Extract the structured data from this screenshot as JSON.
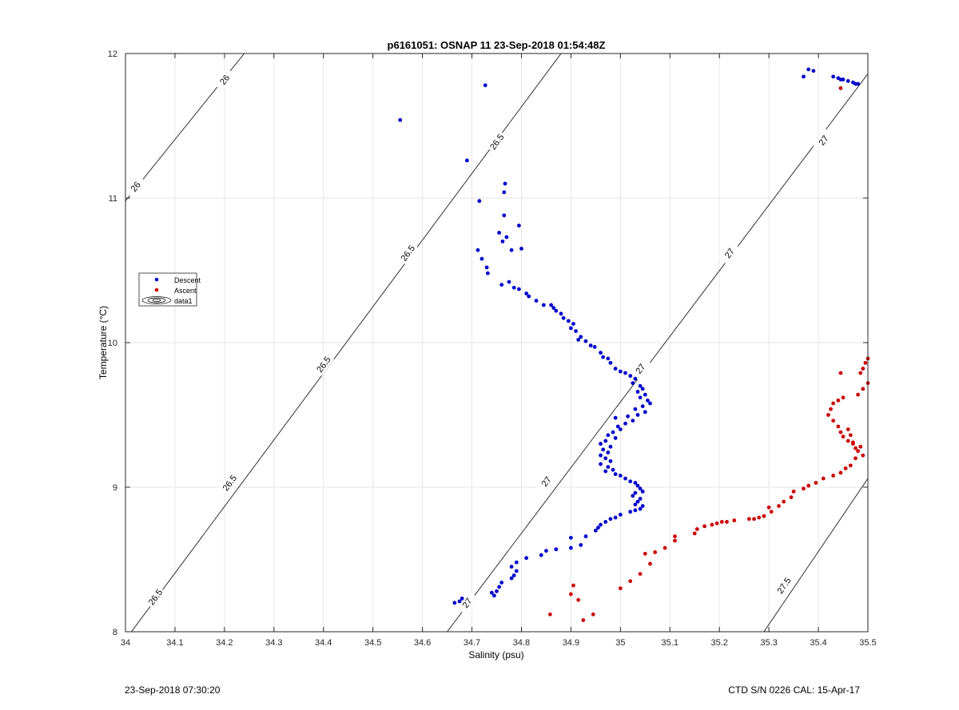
{
  "chart_data": {
    "type": "scatter",
    "title": "p6161051: OSNAP 11 23-Sep-2018 01:54:48Z",
    "xlabel": "Salinity (psu)",
    "ylabel": "Temperature (°C)",
    "xlim": [
      34,
      35.5
    ],
    "ylim": [
      8,
      12
    ],
    "xticks": [
      "34",
      "34.1",
      "34.2",
      "34.3",
      "34.4",
      "34.5",
      "34.6",
      "34.7",
      "34.8",
      "34.9",
      "35",
      "35.1",
      "35.2",
      "35.3",
      "35.4",
      "35.5"
    ],
    "yticks": [
      "8",
      "9",
      "10",
      "11",
      "12"
    ],
    "grid": true,
    "legend_location": "left",
    "series": [
      {
        "name": "Descent",
        "color": "#0000cc",
        "points": [
          [
            34.555,
            11.54
          ],
          [
            34.727,
            11.78
          ],
          [
            34.69,
            11.26
          ],
          [
            34.767,
            11.1
          ],
          [
            34.765,
            11.04
          ],
          [
            34.715,
            10.98
          ],
          [
            34.765,
            10.88
          ],
          [
            34.755,
            10.76
          ],
          [
            34.77,
            10.73
          ],
          [
            34.795,
            10.81
          ],
          [
            34.762,
            10.7
          ],
          [
            34.712,
            10.64
          ],
          [
            34.78,
            10.64
          ],
          [
            34.8,
            10.65
          ],
          [
            34.72,
            10.58
          ],
          [
            34.73,
            10.52
          ],
          [
            34.732,
            10.48
          ],
          [
            34.76,
            10.4
          ],
          [
            34.775,
            10.42
          ],
          [
            34.785,
            10.38
          ],
          [
            34.795,
            10.37
          ],
          [
            34.81,
            10.34
          ],
          [
            34.815,
            10.32
          ],
          [
            34.83,
            10.29
          ],
          [
            34.845,
            10.26
          ],
          [
            34.86,
            10.26
          ],
          [
            34.865,
            10.24
          ],
          [
            34.87,
            10.22
          ],
          [
            34.88,
            10.2
          ],
          [
            34.885,
            10.17
          ],
          [
            34.895,
            10.15
          ],
          [
            34.905,
            10.13
          ],
          [
            34.9,
            10.1
          ],
          [
            34.91,
            10.08
          ],
          [
            34.92,
            10.04
          ],
          [
            34.915,
            10.02
          ],
          [
            34.93,
            10.01
          ],
          [
            34.94,
            9.98
          ],
          [
            34.948,
            9.97
          ],
          [
            34.96,
            9.93
          ],
          [
            34.965,
            9.9
          ],
          [
            34.975,
            9.89
          ],
          [
            34.98,
            9.86
          ],
          [
            34.99,
            9.82
          ],
          [
            35.0,
            9.8
          ],
          [
            35.01,
            9.79
          ],
          [
            35.02,
            9.77
          ],
          [
            35.03,
            9.75
          ],
          [
            35.025,
            9.72
          ],
          [
            35.04,
            9.7
          ],
          [
            35.045,
            9.68
          ],
          [
            35.035,
            9.66
          ],
          [
            35.05,
            9.64
          ],
          [
            35.04,
            9.62
          ],
          [
            35.055,
            9.6
          ],
          [
            35.06,
            9.58
          ],
          [
            35.045,
            9.56
          ],
          [
            35.03,
            9.54
          ],
          [
            35.05,
            9.52
          ],
          [
            35.035,
            9.5
          ],
          [
            35.015,
            9.49
          ],
          [
            34.99,
            9.48
          ],
          [
            35.025,
            9.46
          ],
          [
            35.01,
            9.44
          ],
          [
            34.995,
            9.42
          ],
          [
            35.0,
            9.4
          ],
          [
            34.985,
            9.38
          ],
          [
            34.975,
            9.36
          ],
          [
            34.99,
            9.34
          ],
          [
            34.97,
            9.32
          ],
          [
            34.96,
            9.3
          ],
          [
            34.98,
            9.28
          ],
          [
            34.965,
            9.26
          ],
          [
            34.975,
            9.24
          ],
          [
            34.96,
            9.22
          ],
          [
            34.97,
            9.2
          ],
          [
            34.98,
            9.18
          ],
          [
            34.96,
            9.16
          ],
          [
            34.975,
            9.14
          ],
          [
            34.985,
            9.12
          ],
          [
            34.97,
            9.11
          ],
          [
            34.99,
            9.09
          ],
          [
            35.0,
            9.08
          ],
          [
            35.01,
            9.06
          ],
          [
            35.02,
            9.04
          ],
          [
            35.03,
            9.03
          ],
          [
            35.035,
            9.01
          ],
          [
            35.04,
            8.99
          ],
          [
            35.045,
            8.97
          ],
          [
            35.03,
            8.96
          ],
          [
            35.025,
            8.94
          ],
          [
            35.04,
            8.92
          ],
          [
            35.035,
            8.9
          ],
          [
            35.03,
            8.88
          ],
          [
            35.045,
            8.87
          ],
          [
            35.04,
            8.85
          ],
          [
            35.03,
            8.84
          ],
          [
            35.02,
            8.83
          ],
          [
            35.0,
            8.81
          ],
          [
            34.99,
            8.79
          ],
          [
            34.98,
            8.78
          ],
          [
            34.97,
            8.76
          ],
          [
            34.96,
            8.74
          ],
          [
            34.955,
            8.72
          ],
          [
            34.95,
            8.7
          ],
          [
            34.93,
            8.66
          ],
          [
            34.9,
            8.65
          ],
          [
            34.92,
            8.6
          ],
          [
            34.9,
            8.58
          ],
          [
            34.87,
            8.57
          ],
          [
            34.85,
            8.56
          ],
          [
            34.84,
            8.53
          ],
          [
            34.81,
            8.51
          ],
          [
            34.79,
            8.48
          ],
          [
            34.78,
            8.45
          ],
          [
            34.79,
            8.42
          ],
          [
            34.785,
            8.39
          ],
          [
            34.78,
            8.37
          ],
          [
            34.76,
            8.34
          ],
          [
            34.755,
            8.31
          ],
          [
            34.75,
            8.28
          ],
          [
            34.74,
            8.27
          ],
          [
            34.745,
            8.25
          ],
          [
            34.68,
            8.23
          ],
          [
            34.675,
            8.21
          ],
          [
            34.665,
            8.2
          ],
          [
            35.37,
            11.84
          ],
          [
            35.38,
            11.89
          ],
          [
            35.39,
            11.88
          ],
          [
            35.43,
            11.84
          ],
          [
            35.44,
            11.83
          ],
          [
            35.445,
            11.82
          ],
          [
            35.45,
            11.82
          ],
          [
            35.46,
            11.81
          ],
          [
            35.47,
            11.8
          ],
          [
            35.475,
            11.79
          ],
          [
            35.48,
            11.79
          ]
        ]
      },
      {
        "name": "Ascent",
        "color": "#cc0000",
        "points": [
          [
            35.445,
            11.76
          ],
          [
            34.858,
            8.12
          ],
          [
            34.9,
            8.26
          ],
          [
            34.905,
            8.32
          ],
          [
            34.915,
            8.22
          ],
          [
            34.925,
            8.08
          ],
          [
            34.945,
            8.12
          ],
          [
            35.0,
            8.3
          ],
          [
            35.02,
            8.35
          ],
          [
            35.04,
            8.4
          ],
          [
            35.06,
            8.47
          ],
          [
            35.05,
            8.54
          ],
          [
            35.07,
            8.55
          ],
          [
            35.09,
            8.58
          ],
          [
            35.11,
            8.63
          ],
          [
            35.11,
            8.66
          ],
          [
            35.15,
            8.68
          ],
          [
            35.155,
            8.71
          ],
          [
            35.17,
            8.73
          ],
          [
            35.185,
            8.74
          ],
          [
            35.195,
            8.75
          ],
          [
            35.205,
            8.76
          ],
          [
            35.215,
            8.76
          ],
          [
            35.23,
            8.77
          ],
          [
            35.26,
            8.78
          ],
          [
            35.27,
            8.78
          ],
          [
            35.28,
            8.79
          ],
          [
            35.29,
            8.8
          ],
          [
            35.305,
            8.83
          ],
          [
            35.3,
            8.86
          ],
          [
            35.32,
            8.87
          ],
          [
            35.33,
            8.9
          ],
          [
            35.345,
            8.93
          ],
          [
            35.35,
            8.97
          ],
          [
            35.37,
            8.99
          ],
          [
            35.38,
            9.01
          ],
          [
            35.395,
            9.03
          ],
          [
            35.41,
            9.06
          ],
          [
            35.43,
            9.08
          ],
          [
            35.445,
            9.1
          ],
          [
            35.455,
            9.13
          ],
          [
            35.465,
            9.15
          ],
          [
            35.475,
            9.2
          ],
          [
            35.48,
            9.25
          ],
          [
            35.485,
            9.28
          ],
          [
            35.47,
            9.3
          ],
          [
            35.46,
            9.32
          ],
          [
            35.45,
            9.35
          ],
          [
            35.445,
            9.38
          ],
          [
            35.44,
            9.42
          ],
          [
            35.43,
            9.46
          ],
          [
            35.42,
            9.5
          ],
          [
            35.425,
            9.54
          ],
          [
            35.43,
            9.58
          ],
          [
            35.44,
            9.6
          ],
          [
            35.45,
            9.62
          ],
          [
            35.48,
            9.64
          ],
          [
            35.49,
            9.68
          ],
          [
            35.5,
            9.72
          ],
          [
            35.485,
            9.79
          ],
          [
            35.49,
            9.82
          ],
          [
            35.495,
            9.86
          ],
          [
            35.5,
            9.89
          ],
          [
            35.445,
            9.79
          ],
          [
            35.46,
            9.4
          ],
          [
            35.465,
            9.36
          ],
          [
            35.47,
            9.31
          ],
          [
            35.475,
            9.27
          ],
          [
            35.49,
            9.22
          ]
        ]
      },
      {
        "name": "data1",
        "color": "#000000",
        "points": []
      }
    ],
    "contours": [
      {
        "sigma": "26",
        "segment": [
          [
            34.0,
            10.98
          ],
          [
            34.24,
            12.0
          ]
        ],
        "labels": [
          [
            34.02,
            11.08
          ],
          [
            34.2,
            11.82
          ]
        ]
      },
      {
        "sigma": "26.5",
        "segment": [
          [
            34.012,
            8.0
          ],
          [
            34.88,
            12.0
          ]
        ],
        "labels": [
          [
            34.06,
            8.24
          ],
          [
            34.21,
            9.03
          ],
          [
            34.4,
            9.85
          ],
          [
            34.57,
            10.62
          ],
          [
            34.75,
            11.39
          ]
        ]
      },
      {
        "sigma": "27",
        "segment": [
          [
            34.65,
            8.0
          ],
          [
            35.5,
            11.86
          ]
        ],
        "labels": [
          [
            34.69,
            8.2
          ],
          [
            34.85,
            9.04
          ],
          [
            35.04,
            9.82
          ],
          [
            35.22,
            10.62
          ],
          [
            35.41,
            11.4
          ]
        ]
      },
      {
        "sigma": "27.5",
        "segment": [
          [
            35.29,
            8.0
          ],
          [
            35.5,
            9.06
          ]
        ],
        "labels": [
          [
            35.33,
            8.32
          ]
        ]
      }
    ]
  },
  "footer": {
    "left": "23-Sep-2018 07:30:20",
    "right": "CTD S/N 0226  CAL: 15-Apr-17"
  }
}
